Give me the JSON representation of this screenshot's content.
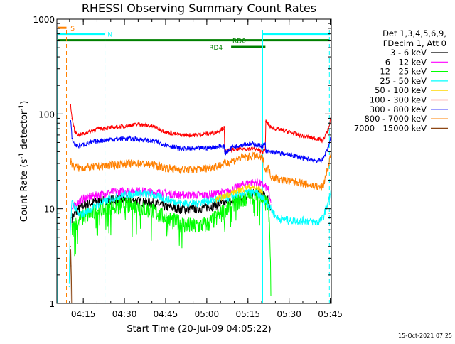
{
  "chart_data": {
    "type": "line",
    "title": "RHESSI Observing Summary Count Rates",
    "xlabel": "Start Time (20-Jul-09 04:05:22)",
    "ylabel_main": "Count Rate (s",
    "ylabel_sup1": "-1",
    "ylabel_mid": " detector",
    "ylabel_sup2": "-1",
    "ylabel_end": ")",
    "x_unit": "minutes since 04:05:22",
    "xlim": [
      0,
      100
    ],
    "ylim": [
      1,
      1000
    ],
    "y_scale": "log",
    "x_ticks": [
      {
        "v": 9.63,
        "label": "04:15"
      },
      {
        "v": 24.63,
        "label": "04:30"
      },
      {
        "v": 39.63,
        "label": "04:45"
      },
      {
        "v": 54.63,
        "label": "05:00"
      },
      {
        "v": 69.63,
        "label": "05:15"
      },
      {
        "v": 84.63,
        "label": "05:30"
      },
      {
        "v": 99.63,
        "label": "05:45"
      }
    ],
    "y_ticks": [
      {
        "v": 1,
        "label": "1"
      },
      {
        "v": 10,
        "label": "10"
      },
      {
        "v": 100,
        "label": "100"
      },
      {
        "v": 1000,
        "label": "1000"
      }
    ],
    "legend": {
      "header1": "Det 1,3,4,5,6,9,",
      "header2": "FDecim 1, Att 0",
      "placement": "right"
    },
    "flag_bars": [
      {
        "label": "S",
        "x0": 0.5,
        "x1": 3.5,
        "y": 810,
        "color": "#ff8000",
        "label_x": 5.0
      },
      {
        "label": "N",
        "x0": 0.5,
        "x1": 17.5,
        "y": 700,
        "color": "#00ffff",
        "label_x": 18.5
      },
      {
        "label": "N",
        "x0": 75.0,
        "x1": 99.5,
        "y": 700,
        "color": "#00ffff",
        "label_x": null
      },
      {
        "label": "RD0",
        "x0": 0.5,
        "x1": 99.5,
        "y": 600,
        "color": "#008000",
        "label_x": 64.0
      },
      {
        "label": "RD4",
        "x0": 63.5,
        "x1": 76.0,
        "y": 510,
        "color": "#008000",
        "label_x": 55.5
      }
    ],
    "vlines": [
      {
        "x": 3.5,
        "color": "#ff8000"
      },
      {
        "x": 17.5,
        "color": "#00ffff"
      },
      {
        "x": 0.3,
        "color": "#00ffff",
        "solid": true
      },
      {
        "x": 75.0,
        "color": "#00ffff",
        "solid": true
      },
      {
        "x": 99.3,
        "color": "#00ffff"
      }
    ],
    "series": [
      {
        "name": "3 - 6 keV",
        "color": "#000000",
        "x": [
          5.5,
          8,
          10,
          15,
          20,
          25,
          30,
          35,
          40,
          45,
          50,
          55,
          58,
          62,
          66,
          70,
          73,
          75,
          77,
          78
        ],
        "y": [
          8,
          10,
          11,
          12,
          12.5,
          12.5,
          12,
          11.5,
          10.5,
          10,
          10,
          10.5,
          11,
          11.5,
          12.5,
          14,
          15,
          14,
          12.5,
          10
        ]
      },
      {
        "name": "6 - 12 keV",
        "color": "#ff00ff",
        "x": [
          5.5,
          8,
          10,
          15,
          20,
          25,
          30,
          35,
          40,
          45,
          50,
          55,
          58,
          62,
          66,
          70,
          73,
          75,
          77,
          78
        ],
        "y": [
          10,
          12,
          13,
          14,
          15,
          15.5,
          15.5,
          15,
          14.5,
          14,
          14,
          14,
          14.5,
          15,
          17,
          19,
          19,
          18,
          16,
          11
        ]
      },
      {
        "name": "12 - 25 keV",
        "color": "#00ff00",
        "x": [
          5.5,
          8,
          10,
          15,
          20,
          25,
          30,
          35,
          40,
          45,
          50,
          55,
          58,
          62,
          66,
          70,
          73,
          75,
          77,
          78
        ],
        "y": [
          6,
          7.5,
          8.5,
          9.5,
          10.5,
          11,
          10.5,
          9.5,
          8,
          7,
          6.5,
          7,
          8,
          10,
          12,
          13.5,
          14,
          13,
          11,
          1
        ]
      },
      {
        "name": "25 - 50 keV",
        "color": "#00ffff",
        "x": [
          4.5,
          5.5,
          8,
          10,
          15,
          20,
          25,
          30,
          35,
          40,
          45,
          50,
          55,
          58,
          62,
          66,
          70,
          73,
          75,
          77,
          80,
          85,
          90,
          95,
          97,
          99,
          100
        ],
        "y": [
          1.5,
          12,
          8.5,
          9,
          11,
          13,
          14,
          14.5,
          14,
          12.5,
          11.5,
          11.5,
          12,
          12.5,
          13,
          14,
          15,
          14.5,
          13,
          11,
          8,
          7.5,
          7.5,
          7.2,
          8,
          12,
          15
        ]
      },
      {
        "name": "50 - 100 keV",
        "color": "#ffd700",
        "x": [
          58,
          62,
          66,
          70,
          73,
          75
        ],
        "y": [
          12.5,
          14,
          15.5,
          17,
          16.5,
          15
        ]
      },
      {
        "name": "100 - 300 keV",
        "color": "#ff0000",
        "x": [
          5,
          5.5,
          6.5,
          8,
          10,
          15,
          20,
          25,
          30,
          35,
          40,
          45,
          50,
          55,
          58,
          61,
          61.1,
          64,
          68,
          72,
          75,
          76,
          76.1,
          78,
          85,
          90,
          95,
          97,
          99,
          100
        ],
        "y": [
          125,
          90,
          65,
          60,
          62,
          70,
          72,
          75,
          78,
          74,
          64,
          60,
          60,
          62,
          64,
          72,
          40,
          42,
          43,
          43,
          40,
          42,
          84,
          72,
          64,
          58,
          55,
          52,
          70,
          95
        ]
      },
      {
        "name": "300 - 800 keV",
        "color": "#0000ff",
        "x": [
          5,
          5.5,
          6.5,
          8,
          10,
          15,
          20,
          25,
          30,
          35,
          40,
          45,
          50,
          55,
          58,
          61,
          61.1,
          64,
          68,
          72,
          75,
          76,
          76.1,
          78,
          85,
          90,
          95,
          97,
          99,
          100
        ],
        "y": [
          85,
          55,
          47,
          46,
          48,
          52,
          54,
          55,
          54,
          52,
          47,
          43,
          43,
          44,
          45,
          46,
          38,
          45,
          48,
          48,
          46,
          48,
          40,
          40,
          37,
          34,
          32,
          33,
          45,
          60
        ]
      },
      {
        "name": "800 - 7000 keV",
        "color": "#ff8000",
        "x": [
          5,
          6,
          8,
          10,
          15,
          20,
          25,
          30,
          35,
          40,
          45,
          50,
          55,
          60,
          64,
          68,
          72,
          75,
          76,
          77,
          78,
          82,
          88,
          95,
          97,
          99,
          100
        ],
        "y": [
          32,
          28,
          27,
          27,
          28,
          29,
          30,
          30,
          29,
          27,
          26,
          26,
          27,
          29,
          32,
          35,
          36,
          34,
          25,
          27,
          22,
          20,
          19,
          17,
          17,
          28,
          40
        ]
      },
      {
        "name": "7000 - 15000 keV",
        "color": "#8b4513",
        "x": [
          4.8,
          5.0,
          5.2,
          5.4
        ],
        "y": [
          1,
          4,
          2.5,
          1
        ]
      }
    ]
  },
  "footer": {
    "timestamp": "15-Oct-2021 07:25"
  }
}
